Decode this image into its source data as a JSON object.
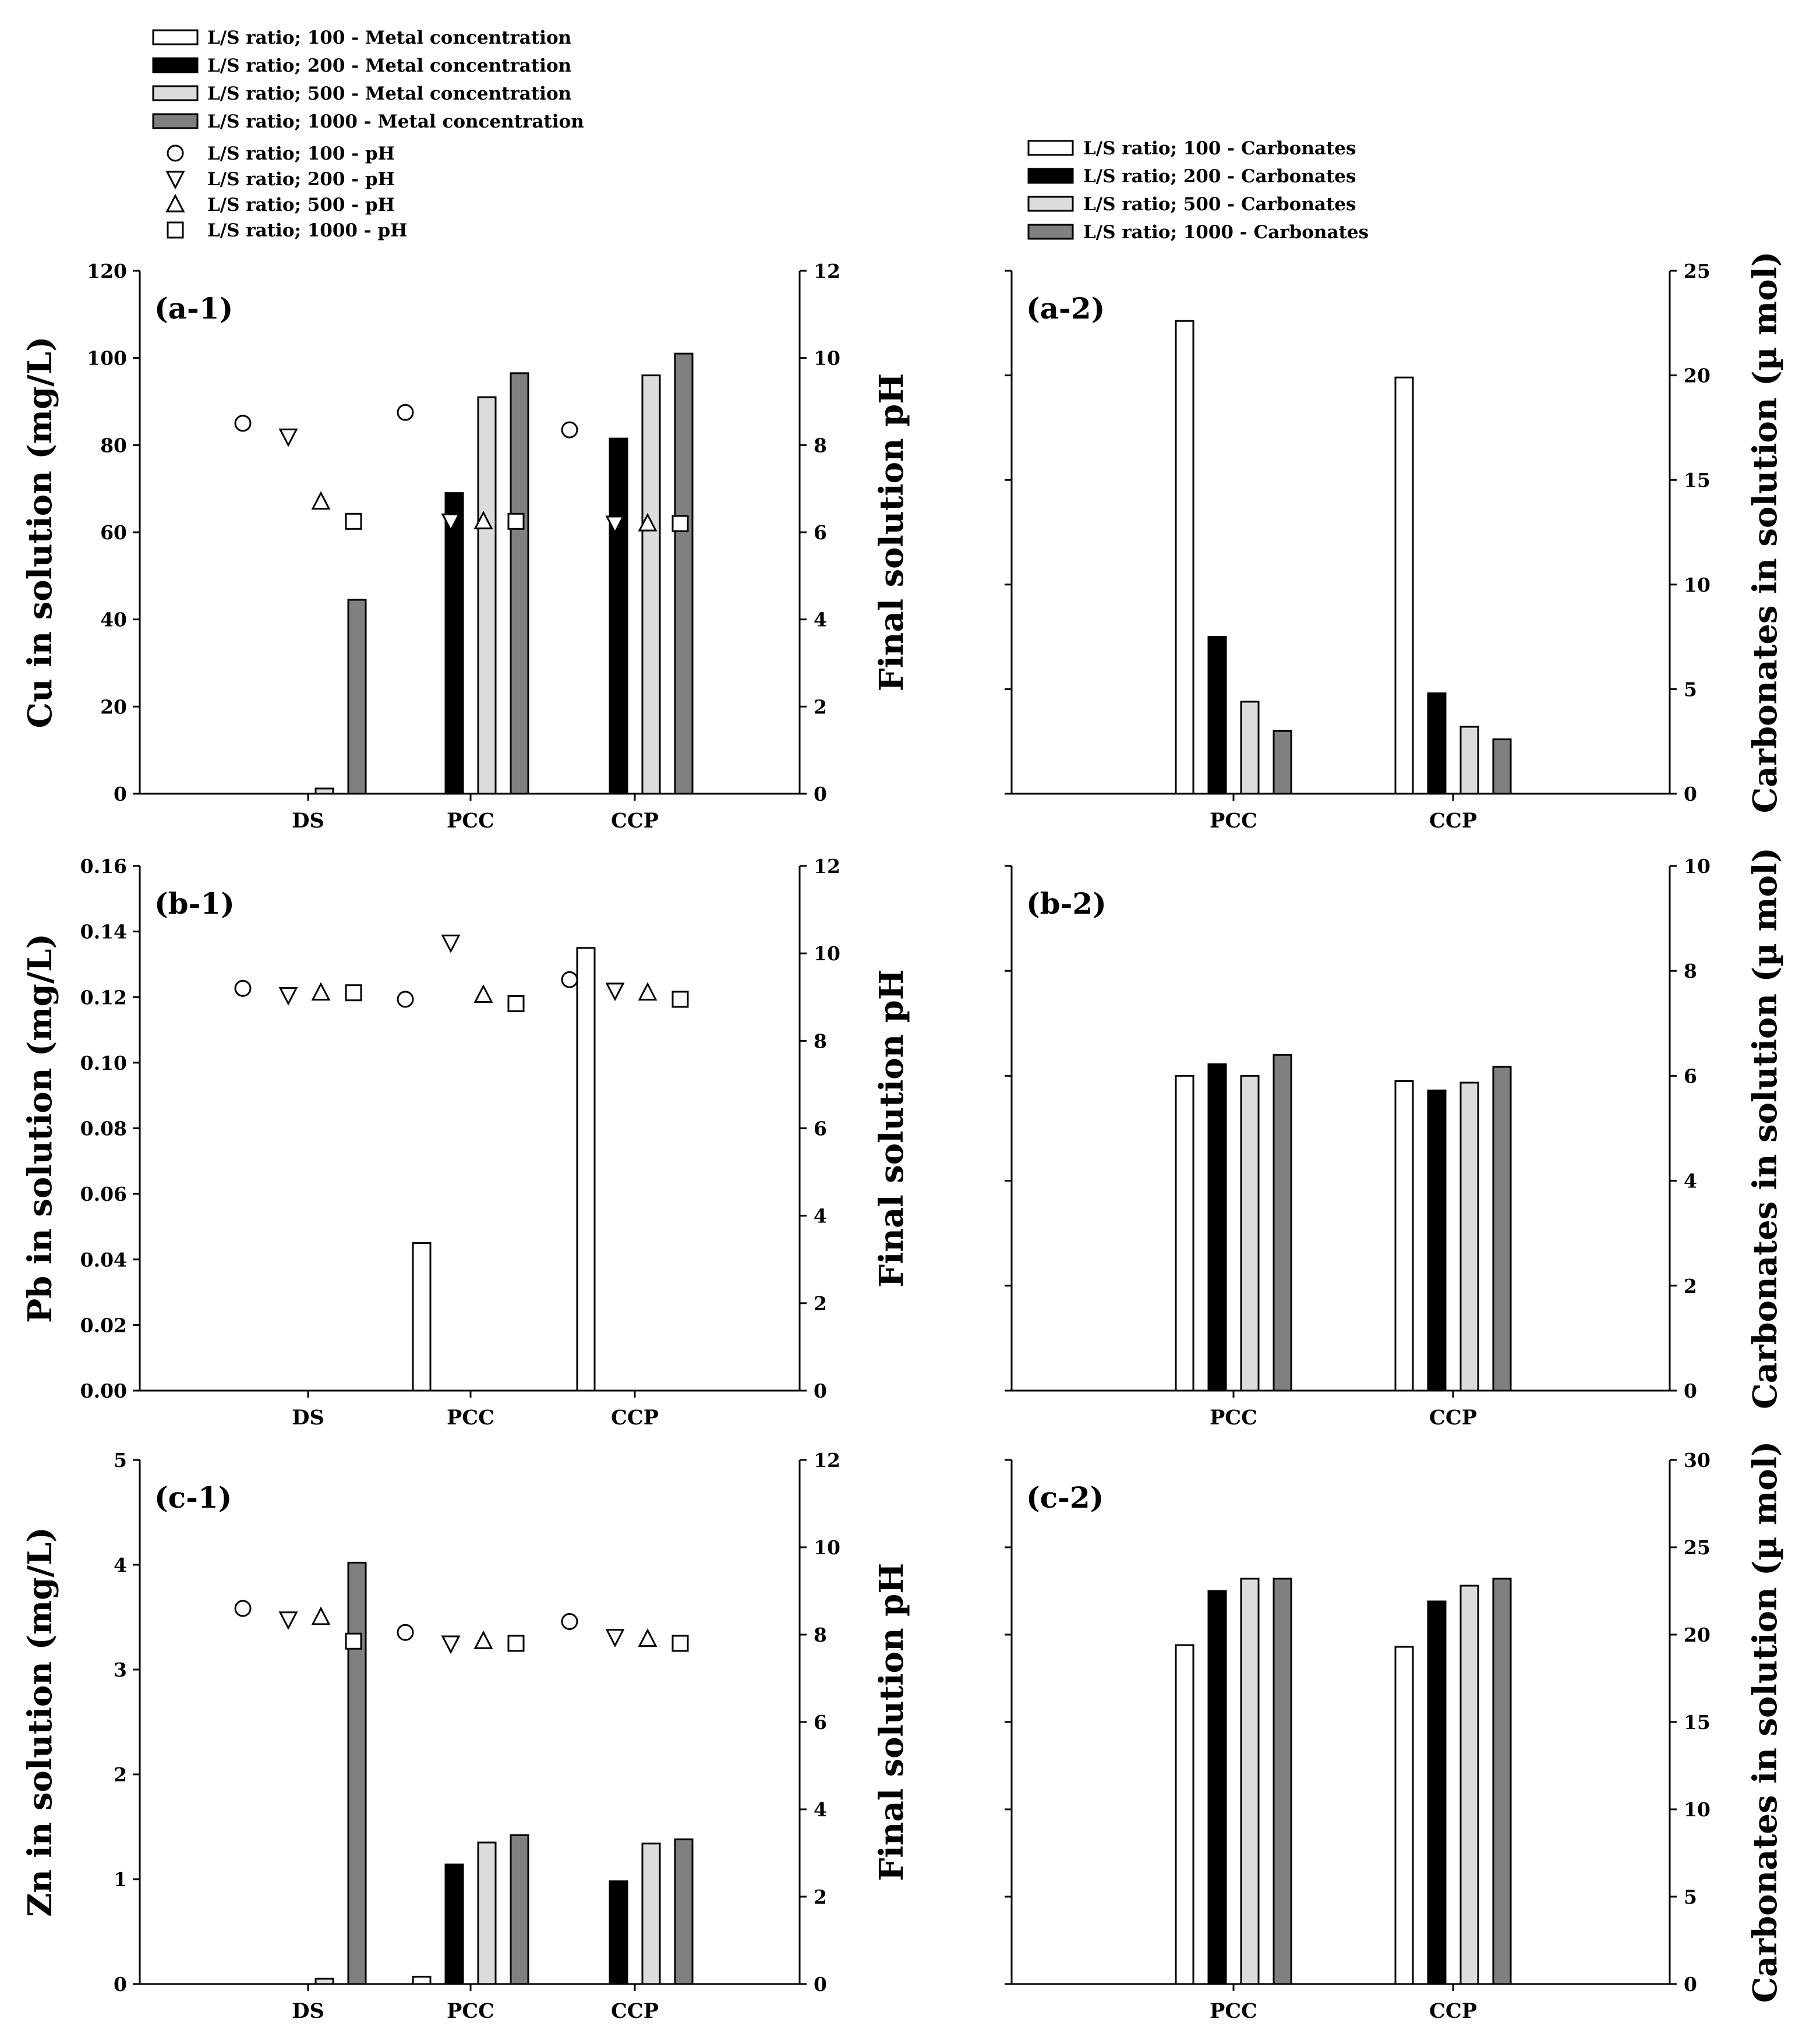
{
  "legend_metal": [
    {
      "label": "L/S ratio; 100 - Metal concentration",
      "fill": "#ffffff"
    },
    {
      "label": "L/S ratio; 200 - Metal concentration",
      "fill": "#000000"
    },
    {
      "label": "L/S ratio; 500 - Metal concentration",
      "fill": "#dcdcdc"
    },
    {
      "label": "L/S ratio; 1000 - Metal concentration",
      "fill": "#808080"
    }
  ],
  "legend_ph": [
    {
      "label": "L/S ratio; 100 - pH",
      "marker": "circle"
    },
    {
      "label": "L/S ratio; 200 - pH",
      "marker": "triangle-down"
    },
    {
      "label": "L/S ratio; 500 - pH",
      "marker": "triangle-up"
    },
    {
      "label": "L/S ratio; 1000 - pH",
      "marker": "square"
    }
  ],
  "legend_carb": [
    {
      "label": "L/S ratio; 100 - Carbonates",
      "fill": "#ffffff"
    },
    {
      "label": "L/S ratio; 200 - Carbonates",
      "fill": "#000000"
    },
    {
      "label": "L/S ratio; 500 - Carbonates",
      "fill": "#dcdcdc"
    },
    {
      "label": "L/S ratio; 1000 - Carbonates",
      "fill": "#808080"
    }
  ],
  "chart_data": [
    {
      "id": "a-1",
      "type": "bar",
      "panel_label": "(a-1)",
      "categories": [
        "DS",
        "PCC",
        "CCP"
      ],
      "ylabel": "Cu in solution (mg/L)",
      "ylim": [
        0,
        120
      ],
      "yticks": [
        "0",
        "20",
        "40",
        "60",
        "80",
        "100",
        "120"
      ],
      "y2label": "Final solution pH",
      "y2lim": [
        0,
        12
      ],
      "y2ticks": [
        "0",
        "2",
        "4",
        "6",
        "8",
        "10",
        "12"
      ],
      "series": [
        {
          "name": "L/S ratio; 100 - Metal concentration",
          "values": [
            0,
            0,
            0
          ]
        },
        {
          "name": "L/S ratio; 200 - Metal concentration",
          "values": [
            0,
            69,
            81.5
          ]
        },
        {
          "name": "L/S ratio; 500 - Metal concentration",
          "values": [
            1.2,
            91,
            96
          ]
        },
        {
          "name": "L/S ratio; 1000 - Metal concentration",
          "values": [
            44.5,
            96.5,
            101
          ]
        }
      ],
      "ph_series": [
        {
          "name": "L/S ratio; 100 - pH",
          "values": [
            8.5,
            8.75,
            8.35
          ]
        },
        {
          "name": "L/S ratio; 200 - pH",
          "values": [
            8.2,
            6.25,
            6.2
          ]
        },
        {
          "name": "L/S ratio; 500 - pH",
          "values": [
            6.7,
            6.25,
            6.2
          ]
        },
        {
          "name": "L/S ratio; 1000 - pH",
          "values": [
            6.25,
            6.25,
            6.2
          ]
        }
      ]
    },
    {
      "id": "a-2",
      "type": "bar",
      "panel_label": "(a-2)",
      "categories": [
        "PCC",
        "CCP"
      ],
      "ylabel": "Carbonates in solution (µ mol)",
      "ylim": [
        0,
        25
      ],
      "yticks": [
        "0",
        "5",
        "10",
        "15",
        "20",
        "25"
      ],
      "series": [
        {
          "name": "L/S ratio; 100 - Carbonates",
          "values": [
            22.6,
            19.9
          ]
        },
        {
          "name": "L/S ratio; 200 - Carbonates",
          "values": [
            7.5,
            4.8
          ]
        },
        {
          "name": "L/S ratio; 500 - Carbonates",
          "values": [
            4.4,
            3.2
          ]
        },
        {
          "name": "L/S ratio; 1000 - Carbonates",
          "values": [
            3.0,
            2.6
          ]
        }
      ]
    },
    {
      "id": "b-1",
      "type": "bar",
      "panel_label": "(b-1)",
      "categories": [
        "DS",
        "PCC",
        "CCP"
      ],
      "ylabel": "Pb in solution (mg/L)",
      "ylim": [
        0,
        0.16
      ],
      "yticks": [
        "0.00",
        "0.02",
        "0.04",
        "0.06",
        "0.08",
        "0.10",
        "0.12",
        "0.14",
        "0.16"
      ],
      "y2label": "Final solution pH",
      "y2lim": [
        0,
        12
      ],
      "y2ticks": [
        "0",
        "2",
        "4",
        "6",
        "8",
        "10",
        "12"
      ],
      "series": [
        {
          "name": "L/S ratio; 100 - Metal concentration",
          "values": [
            0,
            0.045,
            0.135
          ]
        },
        {
          "name": "L/S ratio; 200 - Metal concentration",
          "values": [
            0,
            0,
            0
          ]
        },
        {
          "name": "L/S ratio; 500 - Metal concentration",
          "values": [
            0,
            0,
            0
          ]
        },
        {
          "name": "L/S ratio; 1000 - Metal concentration",
          "values": [
            0,
            0,
            0
          ]
        }
      ],
      "ph_series": [
        {
          "name": "L/S ratio; 100 - pH",
          "values": [
            9.2,
            8.95,
            9.4
          ]
        },
        {
          "name": "L/S ratio; 200 - pH",
          "values": [
            9.05,
            10.25,
            9.15
          ]
        },
        {
          "name": "L/S ratio; 500 - pH",
          "values": [
            9.1,
            9.05,
            9.1
          ]
        },
        {
          "name": "L/S ratio; 1000 - pH",
          "values": [
            9.1,
            8.85,
            8.95
          ]
        }
      ]
    },
    {
      "id": "b-2",
      "type": "bar",
      "panel_label": "(b-2)",
      "categories": [
        "PCC",
        "CCP"
      ],
      "ylabel": "Carbonates in solution (µ mol)",
      "ylim": [
        0,
        10
      ],
      "yticks": [
        "0",
        "2",
        "4",
        "6",
        "8",
        "10"
      ],
      "series": [
        {
          "name": "L/S ratio; 100 - Carbonates",
          "values": [
            6.0,
            5.9
          ]
        },
        {
          "name": "L/S ratio; 200 - Carbonates",
          "values": [
            6.22,
            5.72
          ]
        },
        {
          "name": "L/S ratio; 500 - Carbonates",
          "values": [
            6.0,
            5.87
          ]
        },
        {
          "name": "L/S ratio; 1000 - Carbonates",
          "values": [
            6.4,
            6.17
          ]
        }
      ]
    },
    {
      "id": "c-1",
      "type": "bar",
      "panel_label": "(c-1)",
      "categories": [
        "DS",
        "PCC",
        "CCP"
      ],
      "ylabel": "Zn in solution (mg/L)",
      "ylim": [
        0,
        5
      ],
      "yticks": [
        "0",
        "1",
        "2",
        "3",
        "4",
        "5"
      ],
      "y2label": "Final solution pH",
      "y2lim": [
        0,
        12
      ],
      "y2ticks": [
        "0",
        "2",
        "4",
        "6",
        "8",
        "10",
        "12"
      ],
      "series": [
        {
          "name": "L/S ratio; 100 - Metal concentration",
          "values": [
            0,
            0.07,
            0
          ]
        },
        {
          "name": "L/S ratio; 200 - Metal concentration",
          "values": [
            0,
            1.14,
            0.98
          ]
        },
        {
          "name": "L/S ratio; 500 - Metal concentration",
          "values": [
            0.05,
            1.35,
            1.34
          ]
        },
        {
          "name": "L/S ratio; 1000 - Metal concentration",
          "values": [
            4.02,
            1.42,
            1.38
          ]
        }
      ],
      "ph_series": [
        {
          "name": "L/S ratio; 100 - pH",
          "values": [
            8.6,
            8.05,
            8.3
          ]
        },
        {
          "name": "L/S ratio; 200 - pH",
          "values": [
            8.35,
            7.8,
            7.95
          ]
        },
        {
          "name": "L/S ratio; 500 - pH",
          "values": [
            8.4,
            7.85,
            7.9
          ]
        },
        {
          "name": "L/S ratio; 1000 - pH",
          "values": [
            7.85,
            7.8,
            7.8
          ]
        }
      ]
    },
    {
      "id": "c-2",
      "type": "bar",
      "panel_label": "(c-2)",
      "categories": [
        "PCC",
        "CCP"
      ],
      "ylabel": "Carbonates in solution (µ mol)",
      "ylim": [
        0,
        30
      ],
      "yticks": [
        "0",
        "5",
        "10",
        "15",
        "20",
        "25",
        "30"
      ],
      "series": [
        {
          "name": "L/S ratio; 100 - Carbonates",
          "values": [
            19.4,
            19.3
          ]
        },
        {
          "name": "L/S ratio; 200 - Carbonates",
          "values": [
            22.5,
            21.9
          ]
        },
        {
          "name": "L/S ratio; 500 - Carbonates",
          "values": [
            23.2,
            22.8
          ]
        },
        {
          "name": "L/S ratio; 1000 - Carbonates",
          "values": [
            23.2,
            23.2
          ]
        }
      ]
    }
  ]
}
